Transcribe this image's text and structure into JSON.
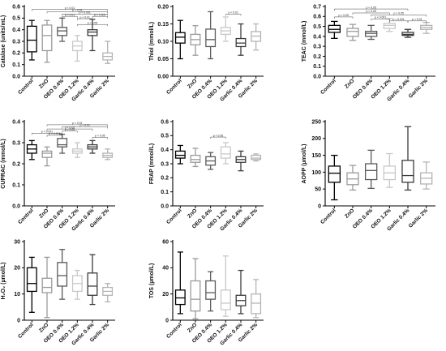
{
  "palette": {
    "Control": "#000000",
    "ZnO": "#9b9b9b",
    "OEO 0.4%": "#5a5a5a",
    "OEO 1.2%": "#c8c8c8",
    "Garlic 0.4%": "#3c3c3c",
    "Garlic 2%": "#b4b4b4"
  },
  "chart_data": [
    {
      "type": "box",
      "ylabel": "Catalase (units/mL)",
      "ylim": [
        0,
        0.6
      ],
      "yticks": [
        "0.0",
        "0.1",
        "0.2",
        "0.3",
        "0.4",
        "0.5",
        "0.6"
      ],
      "categories": [
        "Control",
        "ZnO",
        "OEO 0.4%",
        "OEO 1.2%",
        "Garlic 0.4%",
        "Garlic 2%"
      ],
      "boxes": [
        {
          "min": 0.14,
          "q1": 0.21,
          "median": 0.31,
          "q3": 0.43,
          "max": 0.48
        },
        {
          "min": 0.12,
          "q1": 0.22,
          "median": 0.35,
          "q3": 0.44,
          "max": 0.48
        },
        {
          "min": 0.3,
          "q1": 0.35,
          "median": 0.39,
          "q3": 0.42,
          "max": 0.5
        },
        {
          "min": 0.13,
          "q1": 0.22,
          "median": 0.26,
          "q3": 0.3,
          "max": 0.35
        },
        {
          "min": 0.22,
          "q1": 0.35,
          "median": 0.38,
          "q3": 0.4,
          "max": 0.49
        },
        {
          "min": 0.11,
          "q1": 0.14,
          "median": 0.17,
          "q3": 0.2,
          "max": 0.3
        }
      ],
      "brackets": [
        {
          "from": 0,
          "to": 5,
          "label": "p < 0.01",
          "level": 0.575
        },
        {
          "from": 1,
          "to": 5,
          "label": "p < 0.01",
          "level": 0.555
        },
        {
          "from": 2,
          "to": 5,
          "label": "p < 0.001",
          "level": 0.535
        },
        {
          "from": 2,
          "to": 3,
          "label": "p < 0.01",
          "level": 0.515
        },
        {
          "from": 3,
          "to": 4,
          "label": "p < 0.01",
          "level": 0.495
        },
        {
          "from": 4,
          "to": 5,
          "label": "p < 0.001",
          "level": 0.515
        },
        {
          "from": 3,
          "to": 5,
          "label": "p < 0.05",
          "level": 0.445
        }
      ]
    },
    {
      "type": "box",
      "ylabel": "Thiol (mmol/L)",
      "ylim": [
        0,
        0.2
      ],
      "yticks": [
        "0.00",
        "0.05",
        "0.10",
        "0.15",
        "0.20"
      ],
      "categories": [
        "Control",
        "ZnO",
        "OEO 0.4%",
        "OEO 1.2%",
        "Garlic 0.4%",
        "Garlic 2%"
      ],
      "boxes": [
        {
          "min": 0.05,
          "q1": 0.095,
          "median": 0.112,
          "q3": 0.125,
          "max": 0.16
        },
        {
          "min": 0.06,
          "q1": 0.09,
          "median": 0.105,
          "q3": 0.12,
          "max": 0.145
        },
        {
          "min": 0.05,
          "q1": 0.085,
          "median": 0.105,
          "q3": 0.135,
          "max": 0.185
        },
        {
          "min": 0.1,
          "q1": 0.12,
          "median": 0.13,
          "q3": 0.14,
          "max": 0.17
        },
        {
          "min": 0.06,
          "q1": 0.085,
          "median": 0.095,
          "q3": 0.108,
          "max": 0.15
        },
        {
          "min": 0.075,
          "q1": 0.1,
          "median": 0.115,
          "q3": 0.128,
          "max": 0.15
        }
      ],
      "brackets": [
        {
          "from": 3,
          "to": 4,
          "label": "p < 0.01",
          "level": 0.178
        }
      ]
    },
    {
      "type": "box",
      "ylabel": "TEAC (mmol/L)",
      "ylim": [
        0,
        0.7
      ],
      "yticks": [
        "0.0",
        "0.1",
        "0.2",
        "0.3",
        "0.4",
        "0.5",
        "0.6",
        "0.7"
      ],
      "categories": [
        "Control",
        "ZnO",
        "OEO 0.4%",
        "OEO 1.2%",
        "Garlic 0.4%",
        "Garlic 2%"
      ],
      "boxes": [
        {
          "min": 0.38,
          "q1": 0.44,
          "median": 0.47,
          "q3": 0.51,
          "max": 0.55
        },
        {
          "min": 0.36,
          "q1": 0.4,
          "median": 0.45,
          "q3": 0.48,
          "max": 0.52
        },
        {
          "min": 0.37,
          "q1": 0.4,
          "median": 0.43,
          "q3": 0.45,
          "max": 0.51
        },
        {
          "min": 0.45,
          "q1": 0.48,
          "median": 0.51,
          "q3": 0.53,
          "max": 0.58
        },
        {
          "min": 0.39,
          "q1": 0.41,
          "median": 0.42,
          "q3": 0.44,
          "max": 0.47
        },
        {
          "min": 0.43,
          "q1": 0.47,
          "median": 0.49,
          "q3": 0.51,
          "max": 0.54
        }
      ],
      "brackets": [
        {
          "from": 0,
          "to": 4,
          "label": "p < 0.05",
          "level": 0.675
        },
        {
          "from": 0,
          "to": 1,
          "label": "p < 0.05",
          "level": 0.595
        },
        {
          "from": 1,
          "to": 3,
          "label": "p < 0.05",
          "level": 0.635
        },
        {
          "from": 2,
          "to": 5,
          "label": "p < 0.05",
          "level": 0.615
        },
        {
          "from": 2,
          "to": 3,
          "label": "p < 0.001",
          "level": 0.575
        },
        {
          "from": 3,
          "to": 4,
          "label": "p < 0.001",
          "level": 0.555
        },
        {
          "from": 4,
          "to": 5,
          "label": "p < 0.01",
          "level": 0.555
        }
      ]
    },
    {
      "type": "box",
      "ylabel": "CUPRAC (mmol/L)",
      "ylim": [
        0,
        0.4
      ],
      "yticks": [
        "0.0",
        "0.1",
        "0.2",
        "0.3",
        "0.4"
      ],
      "categories": [
        "Control",
        "ZnO",
        "OEO 0.4%",
        "OEO 1.2%",
        "Garlic 0.4%",
        "Garlic 2%"
      ],
      "boxes": [
        {
          "min": 0.22,
          "q1": 0.25,
          "median": 0.27,
          "q3": 0.29,
          "max": 0.31
        },
        {
          "min": 0.19,
          "q1": 0.23,
          "median": 0.25,
          "q3": 0.26,
          "max": 0.28
        },
        {
          "min": 0.25,
          "q1": 0.28,
          "median": 0.29,
          "q3": 0.32,
          "max": 0.34
        },
        {
          "min": 0.23,
          "q1": 0.25,
          "median": 0.26,
          "q3": 0.27,
          "max": 0.3
        },
        {
          "min": 0.25,
          "q1": 0.27,
          "median": 0.28,
          "q3": 0.29,
          "max": 0.31
        },
        {
          "min": 0.22,
          "q1": 0.23,
          "median": 0.24,
          "q3": 0.25,
          "max": 0.27
        }
      ],
      "brackets": [
        {
          "from": 1,
          "to": 5,
          "label": "p < 0.01",
          "level": 0.385
        },
        {
          "from": 0,
          "to": 2,
          "label": "p < 0.001",
          "level": 0.345
        },
        {
          "from": 1,
          "to": 4,
          "label": "p < 0.05",
          "level": 0.365
        },
        {
          "from": 1,
          "to": 2,
          "label": "p < 0.001",
          "level": 0.335
        },
        {
          "from": 2,
          "to": 3,
          "label": "p < 0.05",
          "level": 0.355
        },
        {
          "from": 2,
          "to": 5,
          "label": "p < 0.01",
          "level": 0.375
        },
        {
          "from": 4,
          "to": 5,
          "label": "p < 0.05",
          "level": 0.325
        }
      ]
    },
    {
      "type": "box",
      "ylabel": "FRAP (mmol/L)",
      "ylim": [
        0,
        0.6
      ],
      "yticks": [
        "0.0",
        "0.1",
        "0.2",
        "0.3",
        "0.4",
        "0.5",
        "0.6"
      ],
      "categories": [
        "Control",
        "ZnO",
        "OEO 0.4%",
        "OEO 1.2%",
        "Garlic 0.4%",
        "Garlic 2%"
      ],
      "boxes": [
        {
          "min": 0.3,
          "q1": 0.34,
          "median": 0.36,
          "q3": 0.39,
          "max": 0.43
        },
        {
          "min": 0.28,
          "q1": 0.31,
          "median": 0.33,
          "q3": 0.36,
          "max": 0.41
        },
        {
          "min": 0.26,
          "q1": 0.29,
          "median": 0.32,
          "q3": 0.35,
          "max": 0.38
        },
        {
          "min": 0.3,
          "q1": 0.34,
          "median": 0.37,
          "q3": 0.42,
          "max": 0.45
        },
        {
          "min": 0.25,
          "q1": 0.31,
          "median": 0.33,
          "q3": 0.35,
          "max": 0.39
        },
        {
          "min": 0.32,
          "q1": 0.33,
          "median": 0.34,
          "q3": 0.36,
          "max": 0.37
        }
      ],
      "brackets": [
        {
          "from": 2,
          "to": 3,
          "label": "p < 0.05",
          "level": 0.49
        }
      ]
    },
    {
      "type": "box",
      "ylabel": "AOPP (µmol/L)",
      "ylim": [
        0,
        250
      ],
      "yticks": [
        "0",
        "50",
        "100",
        "150",
        "200",
        "250"
      ],
      "categories": [
        "Control",
        "ZnO",
        "OEO 0.4%",
        "OEO 1.2%",
        "Garlic 0.4%",
        "Garlic 2%"
      ],
      "boxes": [
        {
          "min": 18,
          "q1": 70,
          "median": 97,
          "q3": 118,
          "max": 150
        },
        {
          "min": 47,
          "q1": 63,
          "median": 80,
          "q3": 98,
          "max": 120
        },
        {
          "min": 52,
          "q1": 78,
          "median": 105,
          "q3": 125,
          "max": 165
        },
        {
          "min": 55,
          "q1": 78,
          "median": 98,
          "q3": 118,
          "max": 155
        },
        {
          "min": 47,
          "q1": 70,
          "median": 90,
          "q3": 135,
          "max": 235
        },
        {
          "min": 50,
          "q1": 65,
          "median": 82,
          "q3": 98,
          "max": 130
        }
      ],
      "brackets": []
    },
    {
      "type": "box",
      "ylabel": "H₂O₂ (µmol/L)",
      "ylim": [
        0,
        30
      ],
      "yticks": [
        "0",
        "10",
        "20",
        "30"
      ],
      "categories": [
        "Control",
        "ZnO",
        "OEO 0.4%",
        "OEO 1.2%",
        "Garlic 0.4%",
        "Garlic 2%"
      ],
      "boxes": [
        {
          "min": 3,
          "q1": 11,
          "median": 14,
          "q3": 20,
          "max": 24
        },
        {
          "min": 1,
          "q1": 10.5,
          "median": 12.5,
          "q3": 16,
          "max": 24
        },
        {
          "min": 8,
          "q1": 13,
          "median": 17,
          "q3": 22,
          "max": 27
        },
        {
          "min": 8,
          "q1": 11,
          "median": 14,
          "q3": 17,
          "max": 19
        },
        {
          "min": 6,
          "q1": 9.5,
          "median": 13,
          "q3": 18,
          "max": 25
        },
        {
          "min": 7,
          "q1": 9.5,
          "median": 11,
          "q3": 12.5,
          "max": 14
        }
      ],
      "brackets": []
    },
    {
      "type": "box",
      "ylabel": "TOS (µmol/L)",
      "ylim": [
        0,
        60
      ],
      "yticks": [
        "0",
        "20",
        "40",
        "60"
      ],
      "categories": [
        "Control",
        "ZnO",
        "OEO 0.4%",
        "OEO 1.2%",
        "Garlic 0.4%",
        "Garlic 2%"
      ],
      "boxes": [
        {
          "min": 5,
          "q1": 12,
          "median": 17,
          "q3": 23,
          "max": 52
        },
        {
          "min": 1,
          "q1": 7,
          "median": 16,
          "q3": 30,
          "max": 47
        },
        {
          "min": 7,
          "q1": 16,
          "median": 21,
          "q3": 30,
          "max": 37
        },
        {
          "min": 3,
          "q1": 8,
          "median": 13,
          "q3": 23,
          "max": 49
        },
        {
          "min": 5,
          "q1": 11,
          "median": 15,
          "q3": 19,
          "max": 38
        },
        {
          "min": 2,
          "q1": 5,
          "median": 13,
          "q3": 20,
          "max": 31
        }
      ],
      "brackets": []
    }
  ]
}
